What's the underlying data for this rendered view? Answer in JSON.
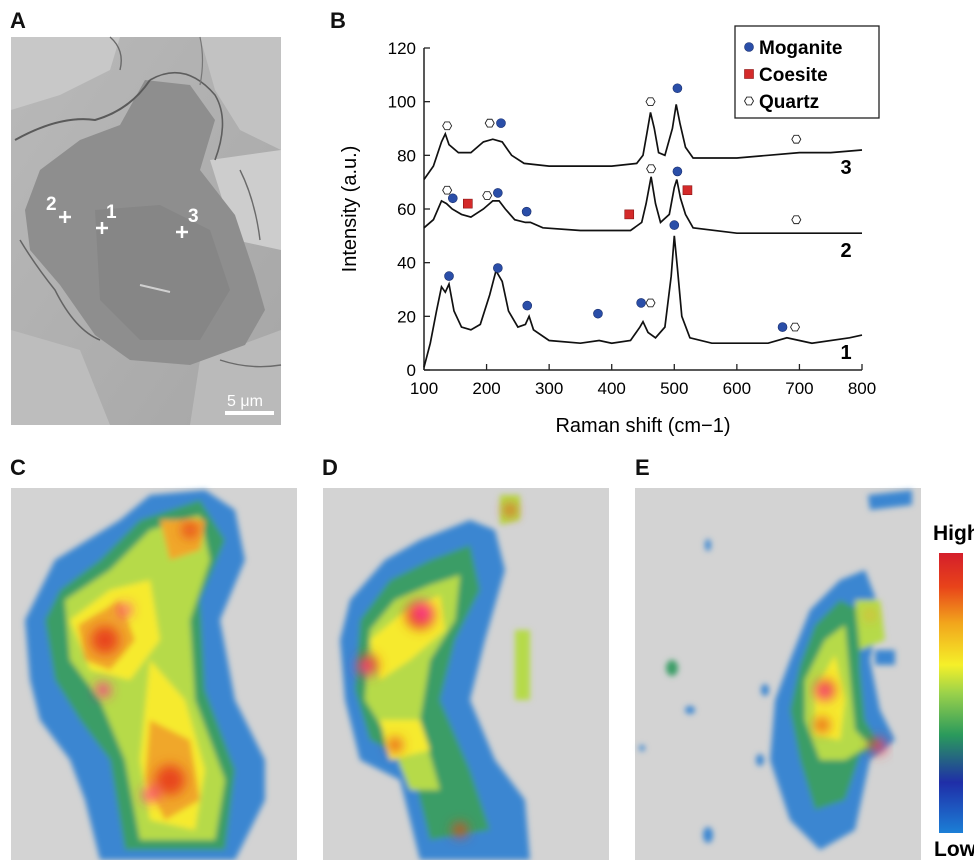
{
  "panels": {
    "a": "A",
    "b": "B",
    "c": "C",
    "d": "D",
    "e": "E"
  },
  "sem_image": {
    "point_labels": [
      "1",
      "2",
      "3"
    ],
    "scale_bar_label": "5 μm"
  },
  "colorbar": {
    "high_label": "High",
    "low_label": "Low",
    "colors": [
      "#1c7fd6",
      "#1f2ea8",
      "#2a9a5c",
      "#9bd24a",
      "#f5f029",
      "#f2a51c",
      "#e8431a",
      "#d41e2b"
    ]
  },
  "chart_data": {
    "type": "line",
    "xlabel": "Raman shift (cm−1)",
    "ylabel": "Intensity (a.u.)",
    "xlim": [
      100,
      800
    ],
    "ylim": [
      0,
      120
    ],
    "x_ticks": [
      100,
      200,
      300,
      400,
      500,
      600,
      700,
      800
    ],
    "y_ticks": [
      0,
      20,
      40,
      60,
      80,
      100,
      120
    ],
    "legend": {
      "position": "top-right",
      "entries": [
        {
          "label": "Moganite",
          "marker": "circle",
          "color": "#2a4ea8"
        },
        {
          "label": "Coesite",
          "marker": "square",
          "color": "#d42a2a"
        },
        {
          "label": "Quartz",
          "marker": "hexagon",
          "color": "#ffffff"
        }
      ]
    },
    "series": [
      {
        "name": "1",
        "baseline": 10,
        "points": [
          [
            100,
            1
          ],
          [
            110,
            10
          ],
          [
            120,
            22
          ],
          [
            128,
            31
          ],
          [
            134,
            29
          ],
          [
            140,
            32
          ],
          [
            148,
            22
          ],
          [
            160,
            16
          ],
          [
            175,
            15
          ],
          [
            190,
            17
          ],
          [
            205,
            28
          ],
          [
            215,
            37
          ],
          [
            225,
            33
          ],
          [
            235,
            22
          ],
          [
            250,
            16
          ],
          [
            262,
            17
          ],
          [
            268,
            20
          ],
          [
            275,
            15
          ],
          [
            300,
            11
          ],
          [
            350,
            10
          ],
          [
            380,
            11
          ],
          [
            400,
            10
          ],
          [
            430,
            11
          ],
          [
            445,
            16
          ],
          [
            450,
            18
          ],
          [
            458,
            14
          ],
          [
            470,
            12
          ],
          [
            485,
            16
          ],
          [
            495,
            35
          ],
          [
            500,
            50
          ],
          [
            505,
            38
          ],
          [
            512,
            20
          ],
          [
            525,
            12
          ],
          [
            560,
            10
          ],
          [
            650,
            10
          ],
          [
            680,
            12
          ],
          [
            700,
            11
          ],
          [
            720,
            10
          ],
          [
            780,
            12
          ],
          [
            800,
            13
          ]
        ],
        "markers": [
          {
            "x": 140,
            "y": 35,
            "type": "moganite"
          },
          {
            "x": 218,
            "y": 38,
            "type": "moganite"
          },
          {
            "x": 265,
            "y": 24,
            "type": "moganite"
          },
          {
            "x": 378,
            "y": 21,
            "type": "moganite"
          },
          {
            "x": 447,
            "y": 25,
            "type": "moganite"
          },
          {
            "x": 462,
            "y": 25,
            "type": "quartz"
          },
          {
            "x": 500,
            "y": 54,
            "type": "moganite"
          },
          {
            "x": 673,
            "y": 16,
            "type": "moganite"
          },
          {
            "x": 693,
            "y": 16,
            "type": "quartz"
          }
        ]
      },
      {
        "name": "2",
        "points": [
          [
            100,
            53
          ],
          [
            115,
            56
          ],
          [
            128,
            63
          ],
          [
            136,
            62
          ],
          [
            145,
            60
          ],
          [
            160,
            58
          ],
          [
            175,
            57
          ],
          [
            195,
            60
          ],
          [
            210,
            63
          ],
          [
            220,
            63
          ],
          [
            230,
            60
          ],
          [
            245,
            56
          ],
          [
            262,
            55
          ],
          [
            270,
            55
          ],
          [
            290,
            53
          ],
          [
            350,
            52
          ],
          [
            400,
            52
          ],
          [
            430,
            52
          ],
          [
            448,
            55
          ],
          [
            455,
            62
          ],
          [
            463,
            72
          ],
          [
            470,
            62
          ],
          [
            478,
            55
          ],
          [
            492,
            58
          ],
          [
            500,
            68
          ],
          [
            504,
            71
          ],
          [
            510,
            64
          ],
          [
            518,
            58
          ],
          [
            530,
            53
          ],
          [
            600,
            51
          ],
          [
            700,
            51
          ],
          [
            800,
            51
          ]
        ],
        "markers": [
          {
            "x": 137,
            "y": 67,
            "type": "quartz"
          },
          {
            "x": 146,
            "y": 64,
            "type": "moganite"
          },
          {
            "x": 170,
            "y": 62,
            "type": "coesite"
          },
          {
            "x": 201,
            "y": 65,
            "type": "quartz"
          },
          {
            "x": 218,
            "y": 66,
            "type": "moganite"
          },
          {
            "x": 264,
            "y": 59,
            "type": "moganite"
          },
          {
            "x": 428,
            "y": 58,
            "type": "coesite"
          },
          {
            "x": 463,
            "y": 75,
            "type": "quartz"
          },
          {
            "x": 505,
            "y": 74,
            "type": "moganite"
          },
          {
            "x": 521,
            "y": 67,
            "type": "coesite"
          },
          {
            "x": 695,
            "y": 56,
            "type": "quartz"
          }
        ]
      },
      {
        "name": "3",
        "points": [
          [
            100,
            71
          ],
          [
            115,
            76
          ],
          [
            128,
            85
          ],
          [
            134,
            88
          ],
          [
            140,
            84
          ],
          [
            155,
            81
          ],
          [
            175,
            81
          ],
          [
            195,
            85
          ],
          [
            210,
            86
          ],
          [
            225,
            85
          ],
          [
            240,
            80
          ],
          [
            260,
            77
          ],
          [
            300,
            76
          ],
          [
            400,
            76
          ],
          [
            440,
            77
          ],
          [
            450,
            80
          ],
          [
            456,
            88
          ],
          [
            462,
            96
          ],
          [
            468,
            90
          ],
          [
            475,
            81
          ],
          [
            485,
            80
          ],
          [
            497,
            90
          ],
          [
            503,
            99
          ],
          [
            509,
            92
          ],
          [
            518,
            83
          ],
          [
            530,
            79
          ],
          [
            600,
            79
          ],
          [
            650,
            80
          ],
          [
            700,
            81
          ],
          [
            750,
            81
          ],
          [
            800,
            82
          ]
        ],
        "markers": [
          {
            "x": 137,
            "y": 91,
            "type": "quartz"
          },
          {
            "x": 205,
            "y": 92,
            "type": "quartz"
          },
          {
            "x": 223,
            "y": 92,
            "type": "moganite"
          },
          {
            "x": 462,
            "y": 100,
            "type": "quartz"
          },
          {
            "x": 505,
            "y": 105,
            "type": "moganite"
          },
          {
            "x": 695,
            "y": 86,
            "type": "quartz"
          }
        ]
      }
    ]
  }
}
